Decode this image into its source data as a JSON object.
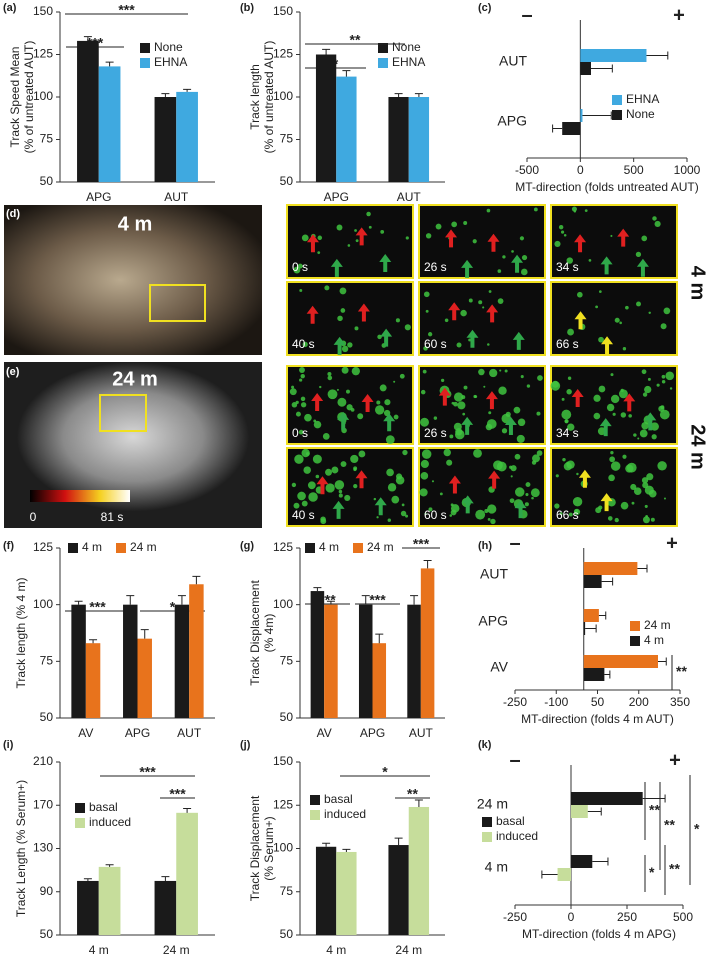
{
  "chart_data": [
    {
      "type": "bar",
      "panel": "(a)",
      "ylabel": [
        "Track Speed Mean",
        "(% of untreated AUT)"
      ],
      "categories": [
        "APG",
        "AUT"
      ],
      "series": [
        {
          "name": "None",
          "color": "#1a1a1a",
          "values": [
            133,
            100
          ],
          "errors": [
            2.5,
            2
          ]
        },
        {
          "name": "EHNA",
          "color": "#3fa9e0",
          "values": [
            118,
            103
          ],
          "errors": [
            2.5,
            1.5
          ]
        }
      ],
      "ylim": [
        50,
        150
      ],
      "yticks": [
        50,
        75,
        100,
        125,
        150
      ],
      "annotations": [
        "***",
        "***"
      ]
    },
    {
      "type": "bar",
      "panel": "(b)",
      "ylabel": [
        "Track length",
        "(% of untreated AUT)"
      ],
      "categories": [
        "APG",
        "AUT"
      ],
      "series": [
        {
          "name": "None",
          "color": "#1a1a1a",
          "values": [
            125,
            100
          ],
          "errors": [
            3,
            2
          ]
        },
        {
          "name": "EHNA",
          "color": "#3fa9e0",
          "values": [
            112,
            100
          ],
          "errors": [
            3.5,
            2
          ]
        }
      ],
      "ylim": [
        50,
        150
      ],
      "yticks": [
        50,
        75,
        100,
        125,
        150
      ],
      "annotations": [
        "**",
        "*"
      ]
    },
    {
      "type": "hbar",
      "panel": "(c)",
      "xlabel": "MT-direction  (folds untreated AUT)",
      "categories": [
        "AUT",
        "APG"
      ],
      "series": [
        {
          "name": "EHNA",
          "color": "#3fa9e0",
          "values": [
            620,
            20
          ],
          "errors": [
            200,
            270
          ]
        },
        {
          "name": "None",
          "color": "#1a1a1a",
          "values": [
            100,
            -170
          ],
          "errors": [
            200,
            90
          ]
        }
      ],
      "xlim": [
        -500,
        1000
      ],
      "xticks": [
        -500,
        0,
        500,
        1000
      ],
      "direction_labels": [
        "–",
        "+"
      ],
      "annotations": []
    },
    {
      "type": "bar",
      "panel": "(f)",
      "ylabel": [
        "Track length (% 4 m)"
      ],
      "categories": [
        "AV",
        "APG",
        "AUT"
      ],
      "series": [
        {
          "name": "4 m",
          "color": "#1a1a1a",
          "values": [
            100,
            100,
            100
          ],
          "errors": [
            1.5,
            4,
            4
          ]
        },
        {
          "name": "24 m",
          "color": "#e8731c",
          "values": [
            83,
            85,
            109
          ],
          "errors": [
            1.5,
            4,
            3.5
          ]
        }
      ],
      "ylim": [
        50,
        125
      ],
      "yticks": [
        50,
        75,
        100,
        125
      ],
      "annotations": [
        "***",
        "*"
      ]
    },
    {
      "type": "bar",
      "panel": "(g)",
      "ylabel": [
        "Track Displacement",
        "(% 4m)"
      ],
      "categories": [
        "AV",
        "APG",
        "AUT"
      ],
      "series": [
        {
          "name": "4 m",
          "color": "#1a1a1a",
          "values": [
            106,
            100,
            100
          ],
          "errors": [
            1.5,
            4,
            4
          ]
        },
        {
          "name": "24 m",
          "color": "#e8731c",
          "values": [
            100,
            83,
            116
          ],
          "errors": [
            1.5,
            4,
            3.5
          ]
        }
      ],
      "ylim": [
        50,
        125
      ],
      "yticks": [
        50,
        75,
        100,
        125
      ],
      "annotations": [
        "***",
        "***",
        "***"
      ]
    },
    {
      "type": "hbar",
      "panel": "(h)",
      "xlabel": "MT-direction  (folds 4 m AUT)",
      "categories": [
        "AUT",
        "APG",
        "AV"
      ],
      "series": [
        {
          "name": "24 m",
          "color": "#e8731c",
          "values": [
            195,
            55,
            270
          ],
          "errors": [
            35,
            25,
            30
          ]
        },
        {
          "name": "4 m",
          "color": "#1a1a1a",
          "values": [
            65,
            5,
            75
          ],
          "errors": [
            40,
            40,
            20
          ]
        }
      ],
      "xlim": [
        -250,
        350
      ],
      "xticks": [
        -250,
        -100,
        50,
        200,
        350
      ],
      "direction_labels": [
        "–",
        "+"
      ],
      "annotations": [
        "**"
      ]
    },
    {
      "type": "bar",
      "panel": "(i)",
      "ylabel": [
        "Track Length (% Serum+)"
      ],
      "categories": [
        "4 m",
        "24 m"
      ],
      "series": [
        {
          "name": "basal",
          "color": "#1a1a1a",
          "values": [
            100,
            100
          ],
          "errors": [
            2,
            4
          ]
        },
        {
          "name": "induced",
          "color": "#c6dd9b",
          "values": [
            113,
            163
          ],
          "errors": [
            2,
            4
          ]
        }
      ],
      "ylim": [
        50,
        210
      ],
      "yticks": [
        50,
        90,
        130,
        170,
        210
      ],
      "annotations": [
        "***",
        "***"
      ]
    },
    {
      "type": "bar",
      "panel": "(j)",
      "ylabel": [
        "Track Displacement",
        "(% Serum+)"
      ],
      "categories": [
        "4 m",
        "24 m"
      ],
      "series": [
        {
          "name": "basal",
          "color": "#1a1a1a",
          "values": [
            101,
            102
          ],
          "errors": [
            2,
            4
          ]
        },
        {
          "name": "induced",
          "color": "#c6dd9b",
          "values": [
            98,
            124
          ],
          "errors": [
            1.5,
            4
          ]
        }
      ],
      "ylim": [
        50,
        150
      ],
      "yticks": [
        50,
        75,
        100,
        125,
        150
      ],
      "annotations": [
        "*",
        "**"
      ]
    },
    {
      "type": "hbar",
      "panel": "(k)",
      "xlabel": "MT-direction (folds 4 m APG)",
      "categories": [
        "24 m",
        "4 m"
      ],
      "series": [
        {
          "name": "basal",
          "color": "#1a1a1a",
          "values": [
            320,
            95
          ],
          "errors": [
            100,
            70
          ]
        },
        {
          "name": "induced",
          "color": "#c6dd9b",
          "values": [
            75,
            -60
          ],
          "errors": [
            60,
            70
          ]
        }
      ],
      "xlim": [
        -250,
        500
      ],
      "xticks": [
        -250,
        0,
        250,
        500
      ],
      "direction_labels": [
        "–",
        "+"
      ],
      "annotations": [
        "**",
        "**",
        "*",
        "*",
        "**"
      ]
    }
  ],
  "image_panels": [
    {
      "panel": "(d)",
      "condition": "4 m",
      "times": [
        "0 s",
        "26 s",
        "34 s",
        "40 s",
        "60 s",
        "66 s"
      ]
    },
    {
      "panel": "(e)",
      "condition": "24 m",
      "times": [
        "0 s",
        "26 s",
        "34 s",
        "40 s",
        "60 s",
        "66 s"
      ],
      "colorbar": [
        "0",
        "81 s"
      ]
    }
  ]
}
